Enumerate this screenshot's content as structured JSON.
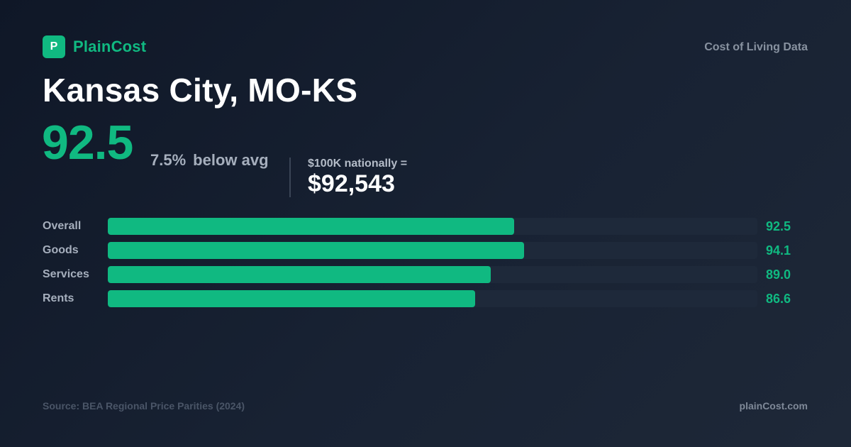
{
  "brand": {
    "logo_letter": "P",
    "name": "PlainCost",
    "tagline": "Cost of Living Data",
    "url": "plainCost.com",
    "accent_color": "#10b981"
  },
  "city": "Kansas City, MO-KS",
  "score": "92.5",
  "difference": {
    "percent": "7.5%",
    "direction": "below avg"
  },
  "equivalent": {
    "label": "$100K nationally =",
    "value": "$92,543"
  },
  "source": "Source: BEA Regional Price Parities (2024)",
  "chart_data": {
    "type": "bar",
    "orientation": "horizontal",
    "categories": [
      "Overall",
      "Goods",
      "Services",
      "Rents"
    ],
    "values": [
      92.5,
      94.1,
      89.0,
      86.6
    ],
    "value_labels": [
      "92.5",
      "94.1",
      "89.0",
      "86.6"
    ],
    "xlim": [
      30,
      130
    ],
    "grid": false,
    "legend": "none"
  }
}
